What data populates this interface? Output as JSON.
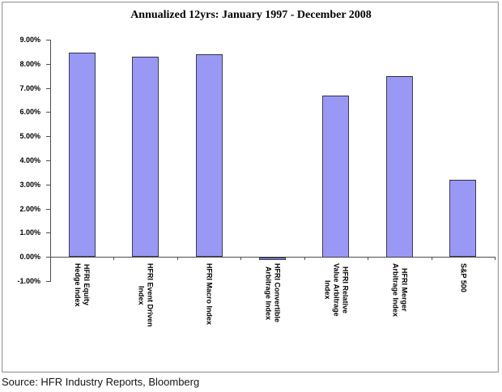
{
  "title": "Annualized 12yrs: January 1997 - December 2008",
  "source_note": "Source: HFR Industry Reports, Bloomberg",
  "colors": {
    "bar_fill": "#9999f5",
    "bar_border": "#3c3c55",
    "axis": "#4d4d4d",
    "chart_border": "#9c9c9c",
    "background": "#ffffff",
    "text": "#000000"
  },
  "chart_data": {
    "type": "bar",
    "title": "Annualized 12yrs: January 1997 - December 2008",
    "categories": [
      "HFRI Equity Hedge Index",
      "HFRI Event Driven Index",
      "HFRI Macro Index",
      "HFRI Convertible Arbitrage Index",
      "HFRI Relative Value Arbitrage Index",
      "HFRI Merger Arbitrage Index",
      "S&P 500"
    ],
    "category_label_lines": [
      [
        "HFRI Equity",
        "Hedge Index"
      ],
      [
        "HFRI Event Driven",
        "Index"
      ],
      [
        "HFRI Macro Index"
      ],
      [
        "HFRI Convertible",
        "Arbitrage Index"
      ],
      [
        "HFRI Relative",
        "Value Arbitrage",
        "Index"
      ],
      [
        "HFRI Merger",
        "Arbitrage Index"
      ],
      [
        "S&P 500"
      ]
    ],
    "values": [
      8.45,
      8.3,
      8.4,
      -0.1,
      6.7,
      7.5,
      3.2
    ],
    "value_unit": "percent",
    "xlabel": "",
    "ylabel": "",
    "ylim": [
      -1,
      9
    ],
    "ytick_step": 1,
    "ytick_labels": [
      "9.00%",
      "8.00%",
      "7.00%",
      "6.00%",
      "5.00%",
      "4.00%",
      "3.00%",
      "2.00%",
      "1.00%",
      "0.00%",
      "-1.00%"
    ],
    "grid": false,
    "legend": null
  }
}
